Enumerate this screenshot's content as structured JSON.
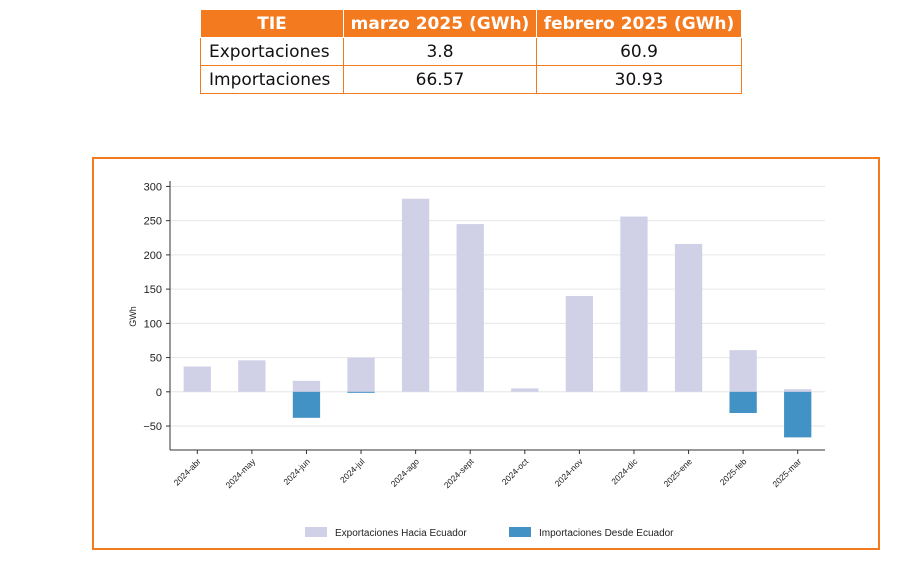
{
  "table": {
    "headers": [
      "TIE",
      "marzo 2025 (GWh)",
      "febrero 2025 (GWh)"
    ],
    "rows": [
      {
        "label": "Exportaciones",
        "values": [
          "3.8",
          "60.9"
        ]
      },
      {
        "label": "Importaciones",
        "values": [
          "66.57",
          "30.93"
        ]
      }
    ]
  },
  "colors": {
    "accent": "#f47a20",
    "exports": "#d0d1e6",
    "imports": "#4292c6"
  },
  "chart_data": {
    "type": "bar",
    "title": "",
    "xlabel": "",
    "ylabel": "GWh",
    "ylim": [
      -85,
      305
    ],
    "yticks": [
      -50,
      0,
      50,
      100,
      150,
      200,
      250,
      300
    ],
    "ytick_labels": [
      "−50",
      "0",
      "50",
      "100",
      "150",
      "200",
      "250",
      "300"
    ],
    "grid": "horizontal",
    "legend": "bottom-center",
    "categories": [
      "2024-abr",
      "2024-may",
      "2024-jun",
      "2024-jul",
      "2024-ago",
      "2024-sept",
      "2024-oct",
      "2024-nov",
      "2024-dic",
      "2025-ene",
      "2025-feb",
      "2025-mar"
    ],
    "series": [
      {
        "name": "Exportaciones Hacia Ecuador",
        "color": "#d0d1e6",
        "values": [
          37,
          46,
          16,
          50,
          282,
          245,
          5,
          140,
          256,
          216,
          60.9,
          3.8
        ]
      },
      {
        "name": "Importaciones Desde Ecuador",
        "color": "#4292c6",
        "values": [
          0,
          0,
          -38,
          -1.5,
          0,
          0,
          0,
          0,
          0,
          0,
          -30.93,
          -66.57
        ]
      }
    ]
  }
}
